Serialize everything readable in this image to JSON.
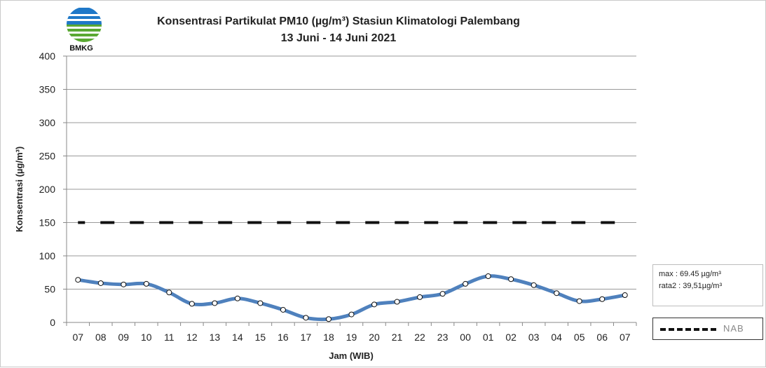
{
  "logo": {
    "label": "BMKG"
  },
  "stats": {
    "max": "max : 69.45 µg/m³",
    "avg": "rata2 : 39,51µg/m³"
  },
  "legend": {
    "nab_label": "NAB"
  },
  "colors": {
    "series": "#4f81bd",
    "nab": "#111111",
    "grid": "#9a9a9a"
  },
  "chart_data": {
    "type": "line",
    "title_line1": "Konsentrasi Partikulat PM10 (µg/m³) Stasiun Klimatologi Palembang",
    "title_line2": "13 Juni - 14 Juni 2021",
    "xlabel": "Jam (WIB)",
    "ylabel": "Konsentrasi (µg/m³)",
    "ylim": [
      0,
      400
    ],
    "yticks": [
      0,
      50,
      100,
      150,
      200,
      250,
      300,
      350,
      400
    ],
    "grid": true,
    "categories": [
      "07",
      "08",
      "09",
      "10",
      "11",
      "12",
      "13",
      "14",
      "15",
      "16",
      "17",
      "18",
      "19",
      "20",
      "21",
      "22",
      "23",
      "00",
      "01",
      "02",
      "03",
      "04",
      "05",
      "06",
      "07"
    ],
    "series": [
      {
        "name": "PM10",
        "values": [
          64,
          59,
          57,
          58,
          45,
          28,
          29,
          36,
          29,
          19,
          7,
          5,
          12,
          27,
          31,
          38,
          43,
          58,
          69.45,
          65,
          56,
          44,
          32,
          35,
          41
        ]
      },
      {
        "name": "NAB",
        "values": [
          150,
          150,
          150,
          150,
          150,
          150,
          150,
          150,
          150,
          150,
          150,
          150,
          150,
          150,
          150,
          150,
          150,
          150,
          150,
          150,
          150,
          150,
          150,
          150,
          150
        ]
      }
    ]
  }
}
